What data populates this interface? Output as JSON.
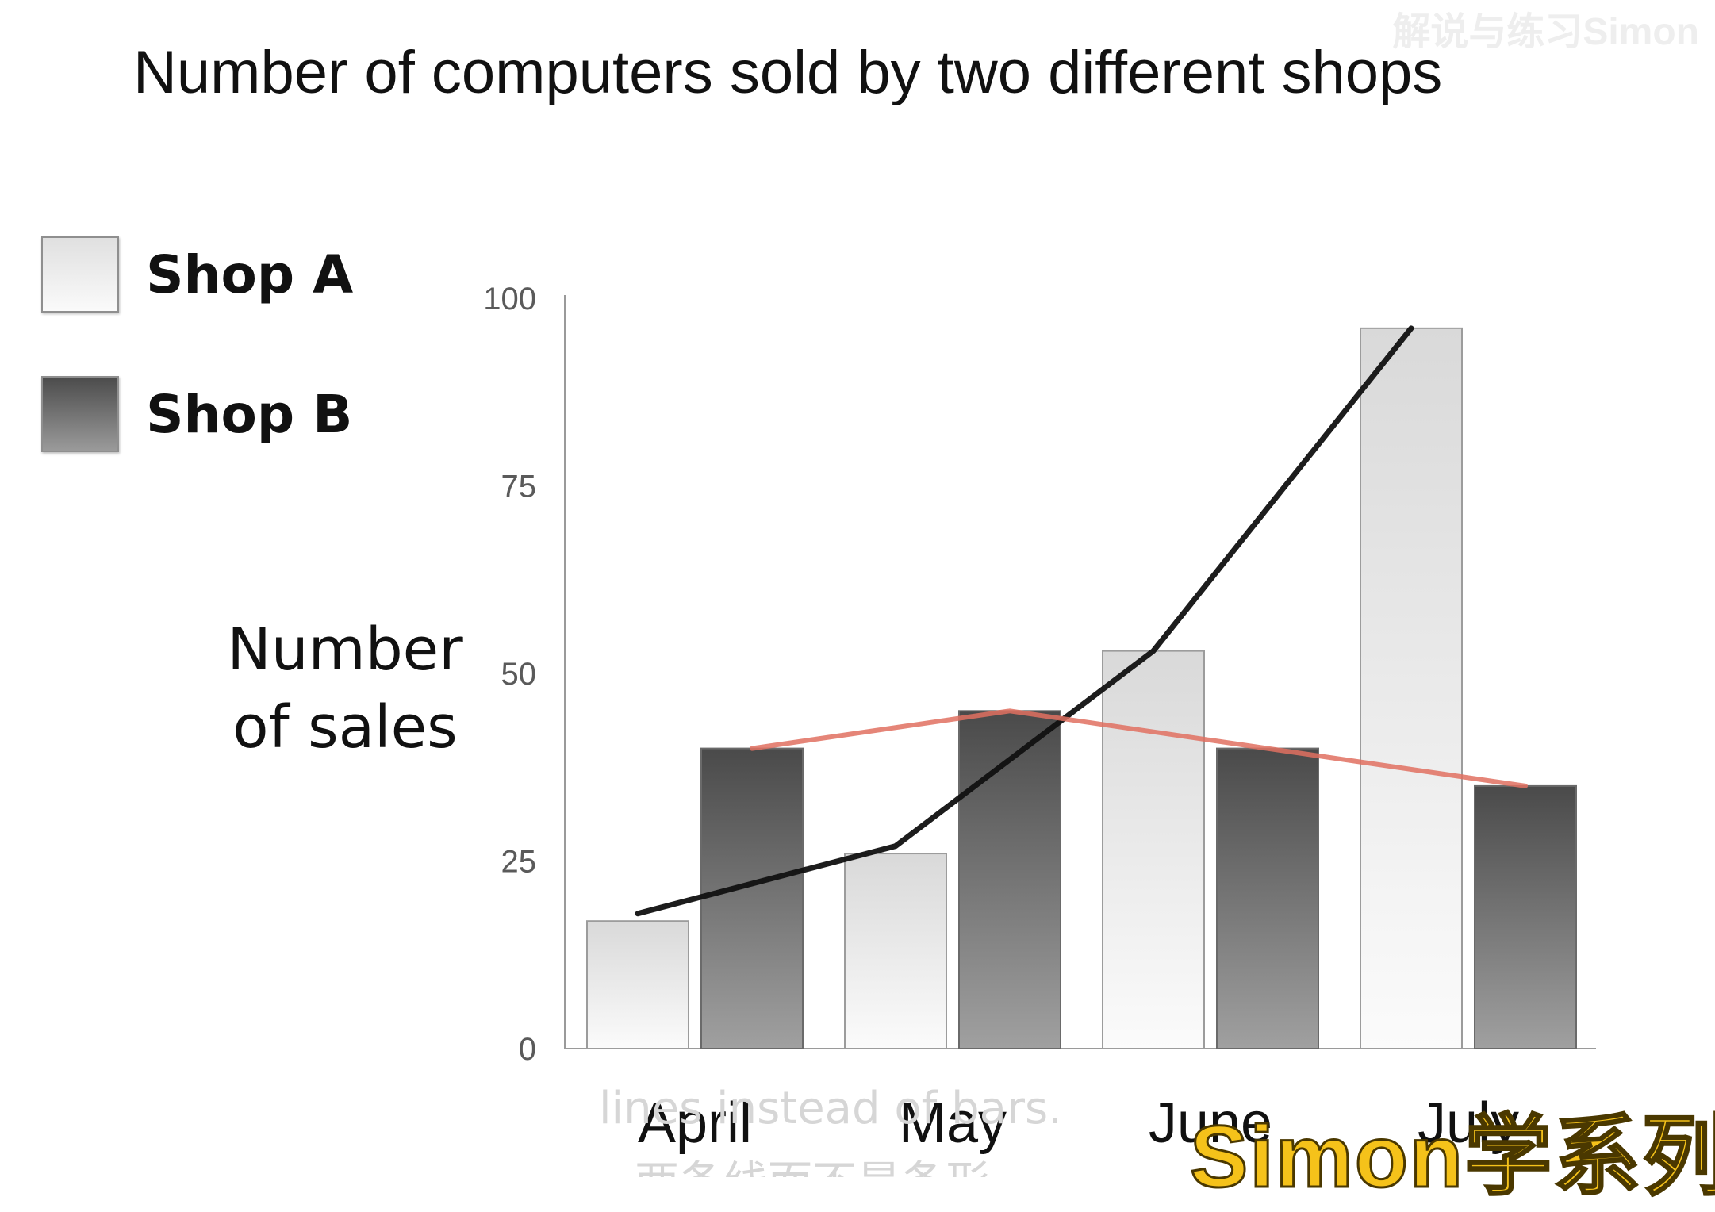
{
  "title": "Number of computers sold by two different shops",
  "legend": [
    {
      "label": "Shop A"
    },
    {
      "label": "Shop B"
    }
  ],
  "ylabel_lines": [
    "Number",
    "of sales"
  ],
  "subtitle": "lines instead of bars.",
  "subtitle_cn": "两条线而不是条形",
  "logo": "Simon学系列",
  "watermark": "解说与练习Simon",
  "chart_data": {
    "type": "bar",
    "title": "Number of computers sold by two different shops",
    "xlabel": "",
    "ylabel": "Number of sales",
    "categories": [
      "April",
      "May",
      "June",
      "July"
    ],
    "ylim": [
      0,
      100
    ],
    "yticks": [
      0,
      25,
      50,
      75,
      100
    ],
    "grid": false,
    "legend_position": "left",
    "series": [
      {
        "name": "Shop A",
        "values": [
          17,
          26,
          53,
          96
        ],
        "color": "#e6e6e6"
      },
      {
        "name": "Shop B",
        "values": [
          40,
          45,
          40,
          35
        ],
        "color": "#5a5a5a"
      }
    ],
    "overlays": [
      {
        "kind": "hand-drawn line",
        "follows": "Shop A",
        "values": [
          18,
          27,
          53,
          96
        ],
        "color": "#111111"
      },
      {
        "kind": "hand-drawn line",
        "follows": "Shop B",
        "values": [
          40,
          45,
          40,
          35
        ],
        "color": "#e07060"
      }
    ]
  }
}
